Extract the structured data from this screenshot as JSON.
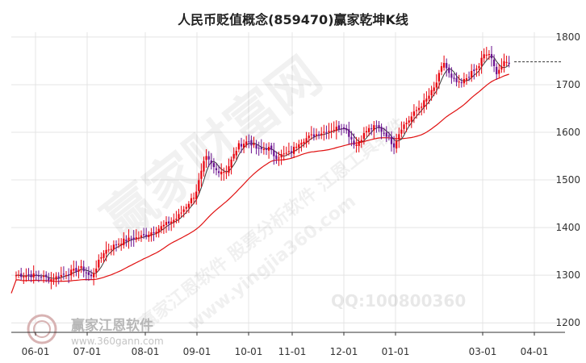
{
  "title": "人民币贬值概念(859470)赢家乾坤K线",
  "colors": {
    "up": "#e8000b",
    "down": "#6a0f8e",
    "ma_long": "#e01010",
    "ma_short": "#3a3a3a",
    "grid": "#e4e4e4",
    "last_price_line": "#333333"
  },
  "watermarks": {
    "brand_big": "赢家财富网",
    "brand_mid": "赢家江恩软件 股票分析软件 江恩工具软件",
    "website": "www.yingjia360.com",
    "qq": "QQ:100800360",
    "logo_text": "赢家江恩软件",
    "logo_url": "www.360gann.com"
  },
  "chart_data": {
    "type": "candlestick",
    "title": "人民币贬值概念(859470)赢家乾坤K线",
    "y_axis": {
      "position": "right",
      "min": 1180,
      "max": 1810,
      "ticks": [
        1200,
        1300,
        1400,
        1500,
        1600,
        1700,
        1800
      ]
    },
    "x_axis": {
      "ticks": [
        "06-01",
        "07-01",
        "08-01",
        "09-01",
        "10-01",
        "11-01",
        "12-01",
        "01-01",
        "03-01",
        "04-01"
      ]
    },
    "grid": true,
    "last_price": 1748,
    "anchors": [
      [
        "06-01",
        1300
      ],
      [
        "06-10",
        1292
      ],
      [
        "06-20",
        1305
      ],
      [
        "06-28",
        1315
      ],
      [
        "07-03",
        1295
      ],
      [
        "07-10",
        1350
      ],
      [
        "07-20",
        1372
      ],
      [
        "07-31",
        1382
      ],
      [
        "08-10",
        1400
      ],
      [
        "08-20",
        1420
      ],
      [
        "08-31",
        1470
      ],
      [
        "09-06",
        1548
      ],
      [
        "09-12",
        1520
      ],
      [
        "09-18",
        1518
      ],
      [
        "09-25",
        1572
      ],
      [
        "10-01",
        1582
      ],
      [
        "10-08",
        1562
      ],
      [
        "10-15",
        1568
      ],
      [
        "10-20",
        1548
      ],
      [
        "10-31",
        1558
      ],
      [
        "11-05",
        1580
      ],
      [
        "11-12",
        1592
      ],
      [
        "11-20",
        1602
      ],
      [
        "11-28",
        1610
      ],
      [
        "12-01",
        1612
      ],
      [
        "12-08",
        1572
      ],
      [
        "12-15",
        1605
      ],
      [
        "12-20",
        1612
      ],
      [
        "12-26",
        1598
      ],
      [
        "12-31",
        1572
      ],
      [
        "01-05",
        1610
      ],
      [
        "01-10",
        1625
      ],
      [
        "01-15",
        1645
      ],
      [
        "01-22",
        1668
      ],
      [
        "01-28",
        1695
      ],
      [
        "02-03",
        1748
      ],
      [
        "02-08",
        1712
      ],
      [
        "02-14",
        1700
      ],
      [
        "02-20",
        1720
      ],
      [
        "02-26",
        1735
      ],
      [
        "03-01",
        1760
      ],
      [
        "03-05",
        1765
      ],
      [
        "03-09",
        1725
      ],
      [
        "03-14",
        1745
      ],
      [
        "03-18",
        1748
      ]
    ],
    "series": [
      {
        "type": "ma_long"
      },
      {
        "type": "ma_short"
      }
    ]
  }
}
